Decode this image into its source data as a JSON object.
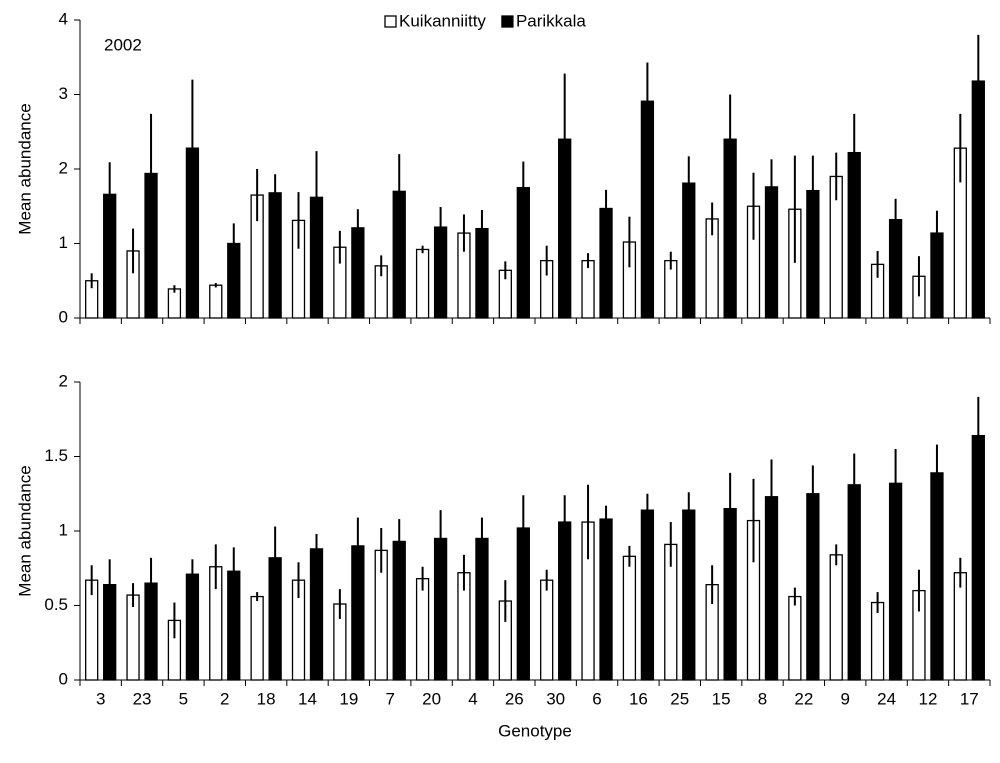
{
  "chart_data": [
    {
      "type": "bar",
      "annotation": "2002",
      "ylabel": "Mean abundance",
      "ylim": [
        0,
        4
      ],
      "yticks": [
        0,
        1,
        2,
        3,
        4
      ],
      "legend": "top",
      "series": [
        {
          "name": "Kuikanniitty",
          "color": "#ffffff",
          "values": [
            0.5,
            0.9,
            0.39,
            0.44,
            1.65,
            1.31,
            0.95,
            0.7,
            0.92,
            1.14,
            0.64,
            0.77,
            0.77,
            1.02,
            0.77,
            1.33,
            1.5,
            1.46,
            1.9,
            0.72,
            0.56,
            2.28
          ],
          "errors": [
            0.1,
            0.3,
            0.05,
            0.03,
            0.35,
            0.38,
            0.22,
            0.14,
            0.05,
            0.25,
            0.12,
            0.2,
            0.1,
            0.34,
            0.12,
            0.22,
            0.45,
            0.72,
            0.32,
            0.18,
            0.27,
            0.46
          ]
        },
        {
          "name": "Parikkala",
          "color": "#000000",
          "values": [
            1.66,
            1.94,
            2.28,
            1.0,
            1.68,
            1.62,
            1.21,
            1.7,
            1.22,
            1.2,
            1.75,
            2.4,
            1.47,
            2.91,
            1.81,
            2.4,
            1.76,
            1.71,
            2.22,
            1.32,
            1.14,
            3.18
          ],
          "errors": [
            0.43,
            0.8,
            0.92,
            0.27,
            0.25,
            0.62,
            0.25,
            0.5,
            0.27,
            0.25,
            0.35,
            0.88,
            0.25,
            0.52,
            0.36,
            0.6,
            0.37,
            0.47,
            0.52,
            0.28,
            0.3,
            0.62
          ]
        }
      ]
    },
    {
      "type": "bar",
      "ylabel": "Mean abundance",
      "xlabel": "Genotype",
      "categories": [
        "3",
        "23",
        "5",
        "2",
        "18",
        "14",
        "19",
        "7",
        "20",
        "4",
        "26",
        "30",
        "6",
        "16",
        "25",
        "15",
        "8",
        "22",
        "9",
        "24",
        "12",
        "17"
      ],
      "ylim": [
        0,
        2
      ],
      "yticks": [
        0,
        0.5,
        1,
        1.5,
        2
      ],
      "series": [
        {
          "color": "#ffffff",
          "values": [
            0.67,
            0.57,
            0.4,
            0.76,
            0.56,
            0.67,
            0.51,
            0.87,
            0.68,
            0.72,
            0.53,
            0.67,
            1.06,
            0.83,
            0.91,
            0.64,
            1.07,
            0.56,
            0.84,
            0.52,
            0.6,
            0.72
          ],
          "errors": [
            0.1,
            0.08,
            0.12,
            0.15,
            0.03,
            0.12,
            0.1,
            0.15,
            0.08,
            0.12,
            0.14,
            0.07,
            0.25,
            0.07,
            0.15,
            0.13,
            0.28,
            0.06,
            0.07,
            0.07,
            0.14,
            0.1
          ]
        },
        {
          "color": "#000000",
          "values": [
            0.64,
            0.65,
            0.71,
            0.73,
            0.82,
            0.88,
            0.9,
            0.93,
            0.95,
            0.95,
            1.02,
            1.06,
            1.08,
            1.14,
            1.14,
            1.15,
            1.23,
            1.25,
            1.31,
            1.32,
            1.39,
            1.64
          ],
          "errors": [
            0.17,
            0.17,
            0.1,
            0.16,
            0.21,
            0.1,
            0.19,
            0.15,
            0.19,
            0.14,
            0.22,
            0.18,
            0.09,
            0.11,
            0.12,
            0.24,
            0.25,
            0.19,
            0.21,
            0.23,
            0.19,
            0.26
          ]
        }
      ]
    }
  ]
}
